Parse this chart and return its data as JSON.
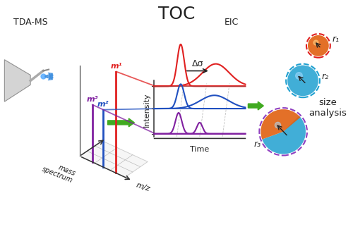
{
  "title": "TOC",
  "title_fontsize": 18,
  "bg_color": "#ffffff",
  "tda_ms_label": "TDA-MS",
  "eic_label": "EIC",
  "intensity_label": "Intensity",
  "time_label": "Time",
  "mz_label": "m/z",
  "mass_spectrum_label": "mass\nspectrum",
  "delta_sigma_label": "Δσ",
  "m1_label": "m¹",
  "m2_label": "m²",
  "m3_label": "m³",
  "r1_label": "r₁",
  "r2_label": "r₂",
  "r3_label": "r₃",
  "size_analysis_label": "size\nanalysis",
  "red_color": "#e02020",
  "blue_color": "#2050c0",
  "purple_color": "#8020a0",
  "green_arrow_color": "#40aa20",
  "orange_color": "#e06010",
  "cyan_color": "#20a0d0",
  "gray_color": "#888888",
  "dark_color": "#222222",
  "cone_face": "#d0d0d0",
  "cone_edge": "#888888"
}
